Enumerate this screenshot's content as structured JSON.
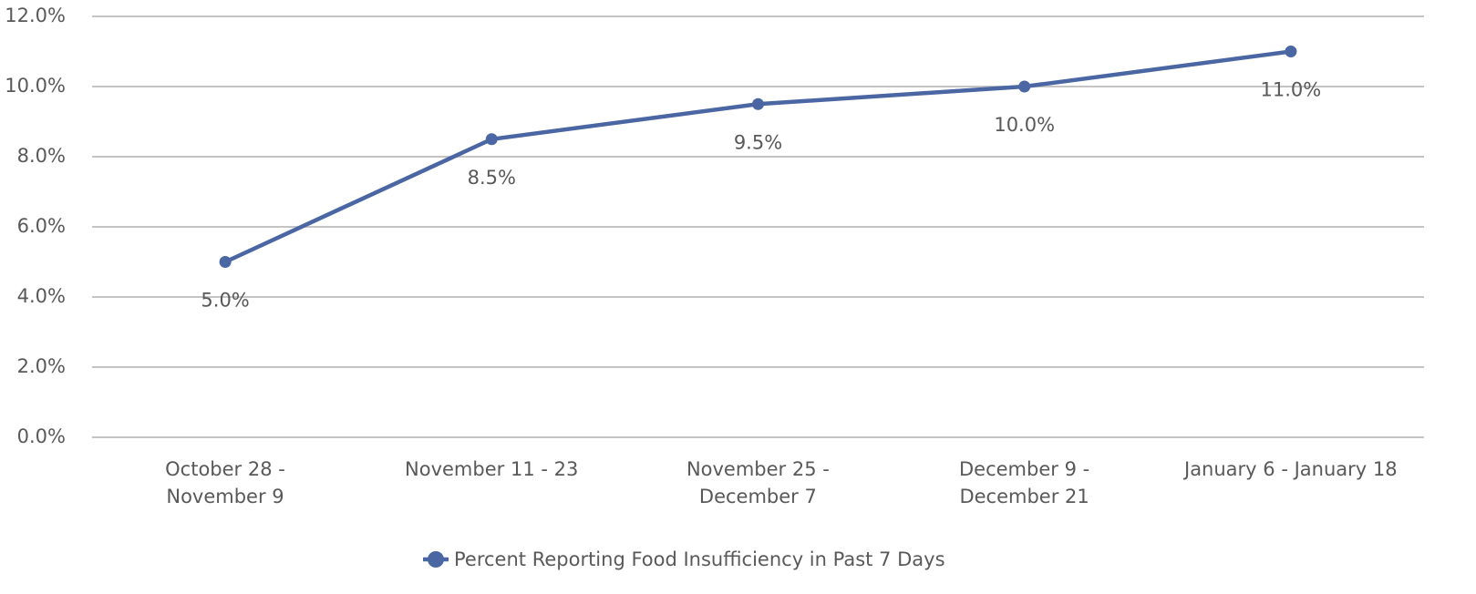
{
  "chart_data": {
    "type": "line",
    "categories": [
      "October 28 -\nNovember 9",
      "November 11 - 23",
      "November 25 -\nDecember 7",
      "December 9 -\nDecember 21",
      "January 6 - January 18"
    ],
    "series": [
      {
        "name": "Percent Reporting Food Insufficiency in Past 7 Days",
        "color": "#4a66a3",
        "values": [
          5.0,
          8.5,
          9.5,
          10.0,
          11.0
        ],
        "value_labels": [
          "5.0%",
          "8.5%",
          "9.5%",
          "10.0%",
          "11.0%"
        ]
      }
    ],
    "ylim": [
      0,
      12
    ],
    "yticks": [
      {
        "value": 0,
        "label": "0.0%"
      },
      {
        "value": 2,
        "label": "2.0%"
      },
      {
        "value": 4,
        "label": "4.0%"
      },
      {
        "value": 6,
        "label": "6.0%"
      },
      {
        "value": 8,
        "label": "8.0%"
      },
      {
        "value": 10,
        "label": "10.0%"
      },
      {
        "value": 12,
        "label": "12.0%"
      }
    ],
    "grid": true,
    "legend": "bottom"
  }
}
